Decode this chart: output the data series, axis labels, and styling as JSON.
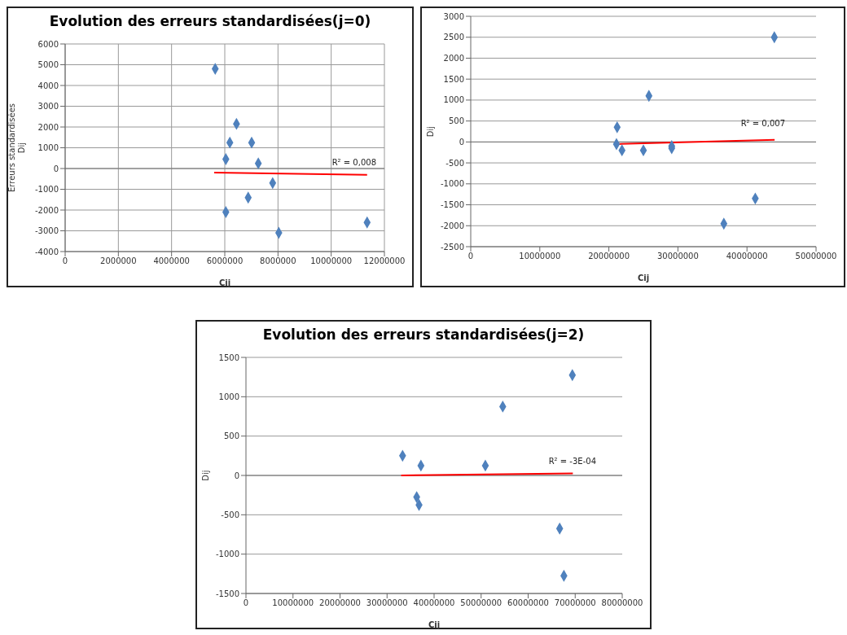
{
  "chart_data": [
    {
      "type": "scatter",
      "title": "Evolution des erreurs standardisées(j=0)",
      "xlabel": "Cij",
      "ylabel": "Erreurs standardisées\nDij",
      "xlim": [
        0,
        12000000
      ],
      "xticks": [
        0,
        2000000,
        4000000,
        6000000,
        8000000,
        10000000,
        12000000
      ],
      "ylim": [
        -4000,
        6000
      ],
      "yticks": [
        -4000,
        -3000,
        -2000,
        -1000,
        0,
        1000,
        2000,
        3000,
        4000,
        5000,
        6000
      ],
      "grid": true,
      "legend": false,
      "series": [
        {
          "marker": "diamond",
          "color": "#4f81bd",
          "x": [
            5640000,
            6440000,
            6190000,
            7010000,
            6040000,
            7260000,
            7800000,
            6880000,
            6040000,
            8030000,
            11350000
          ],
          "values": [
            4800,
            2150,
            1250,
            1250,
            450,
            250,
            -700,
            -1400,
            -2100,
            -3100,
            -2600
          ]
        },
        {
          "type": "line",
          "marker": "none",
          "color": "#ff0000",
          "x": [
            5600000,
            11350000
          ],
          "values": [
            -200,
            -300
          ]
        }
      ],
      "annotations": [
        "R² = 0,008"
      ]
    },
    {
      "type": "scatter",
      "xlabel": "Cij",
      "ylabel": "Dij",
      "xlim": [
        0,
        50000000
      ],
      "xticks": [
        0,
        10000000,
        20000000,
        30000000,
        40000000,
        50000000
      ],
      "ylim": [
        -2500,
        3000
      ],
      "yticks": [
        -2500,
        -2000,
        -1500,
        -1000,
        -500,
        0,
        500,
        1000,
        1500,
        2000,
        2500,
        3000
      ],
      "grid": "y",
      "legend": false,
      "series": [
        {
          "marker": "diamond",
          "color": "#4f81bd",
          "x": [
            43960000,
            25800000,
            21200000,
            21100000,
            21900000,
            25000000,
            29100000,
            29100000,
            36650000,
            41200000
          ],
          "values": [
            2500,
            1100,
            350,
            -50,
            -200,
            -200,
            -100,
            -150,
            -1950,
            -1350
          ]
        },
        {
          "type": "line",
          "marker": "none",
          "color": "#ff0000",
          "x": [
            21000000,
            44000000
          ],
          "values": [
            -50,
            50
          ]
        }
      ],
      "annotations": [
        "R² = 0,007"
      ]
    },
    {
      "type": "scatter",
      "title": "Evolution des erreurs standardisées(j=2)",
      "xlabel": "Cij",
      "ylabel": "Dij",
      "xlim": [
        0,
        80000000
      ],
      "xticks": [
        0,
        10000000,
        20000000,
        30000000,
        40000000,
        50000000,
        60000000,
        70000000,
        80000000
      ],
      "ylim": [
        -1500,
        1500
      ],
      "yticks": [
        -1500,
        -1000,
        -500,
        0,
        500,
        1000,
        1500
      ],
      "grid": "y",
      "legend": false,
      "series": [
        {
          "marker": "diamond",
          "color": "#4f81bd",
          "x": [
            33300000,
            37200000,
            36300000,
            36800000,
            50900000,
            54600000,
            69400000,
            66700000,
            67600000
          ],
          "values": [
            250,
            125,
            -275,
            -375,
            125,
            875,
            1275,
            -675,
            -1275
          ]
        },
        {
          "type": "line",
          "marker": "none",
          "color": "#ff0000",
          "x": [
            33000000,
            69500000
          ],
          "values": [
            0,
            25
          ]
        }
      ],
      "annotations": [
        "R² = -3E-04"
      ]
    }
  ]
}
